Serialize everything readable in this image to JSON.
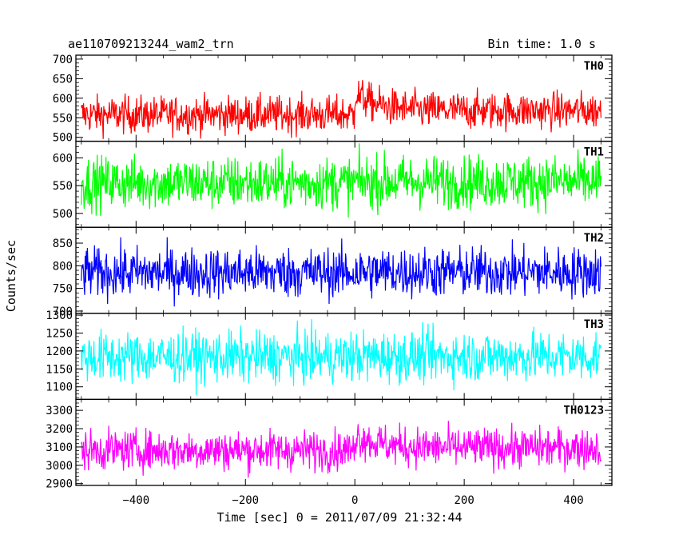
{
  "header": {
    "title": "ae110709213244_wam2_trn",
    "bin_time": "Bin time: 1.0 s"
  },
  "axes": {
    "xlabel": "Time [sec] 0 = 2011/07/09 21:32:44",
    "ylabel": "Counts/sec"
  },
  "chart_data": {
    "type": "line",
    "shared_x": {
      "range": [
        -510,
        470
      ],
      "ticks": [
        -400,
        -200,
        0,
        200,
        400
      ],
      "tick_labels": [
        "−400",
        "−200",
        "0",
        "200",
        "400"
      ],
      "data_extent": [
        -500,
        450
      ],
      "step": 1.0
    },
    "panels": [
      {
        "name": "TH0",
        "color": "#ff0000",
        "ylim": [
          490,
          710
        ],
        "yticks": [
          500,
          550,
          600,
          650,
          700
        ],
        "baseline_before": 558,
        "baseline_after": 568,
        "noise": 24,
        "event": {
          "t": 0,
          "amplitude": 45,
          "decay": 40
        }
      },
      {
        "name": "TH1",
        "color": "#00ff00",
        "ylim": [
          475,
          630
        ],
        "yticks": [
          500,
          550,
          600
        ],
        "baseline_before": 555,
        "baseline_after": 557,
        "noise": 24,
        "event": null
      },
      {
        "name": "TH2",
        "color": "#0000ff",
        "ylim": [
          695,
          885
        ],
        "yticks": [
          700,
          750,
          800,
          850
        ],
        "baseline_before": 785,
        "baseline_after": 786,
        "noise": 28,
        "event": null
      },
      {
        "name": "TH3",
        "color": "#00ffff",
        "ylim": [
          1065,
          1305
        ],
        "yticks": [
          1100,
          1150,
          1200,
          1250,
          1300
        ],
        "baseline_before": 1183,
        "baseline_after": 1185,
        "noise": 36,
        "event": null
      },
      {
        "name": "TH0123",
        "color": "#ff00ff",
        "ylim": [
          2890,
          3360
        ],
        "yticks": [
          2900,
          3000,
          3100,
          3200,
          3300
        ],
        "baseline_before": 3082,
        "baseline_after": 3095,
        "noise": 55,
        "event": {
          "t": 0,
          "amplitude": 75,
          "decay": 40
        }
      }
    ]
  }
}
